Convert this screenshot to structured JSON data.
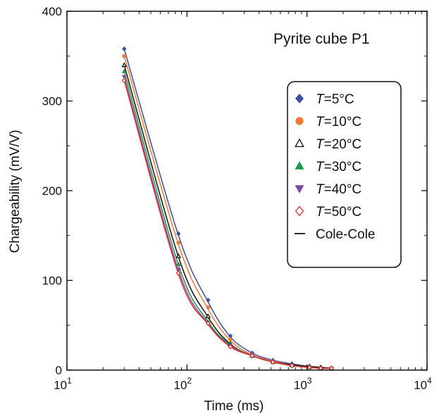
{
  "chart_data": {
    "type": "scatter",
    "title": "Pyrite cube P1",
    "xlabel": "Time (ms)",
    "ylabel": "Chargeability (mV/V)",
    "xscale": "log",
    "xlim": [
      10,
      10000
    ],
    "ylim": [
      0,
      400
    ],
    "xticks": [
      {
        "value": 10,
        "base": "10",
        "exp": "1"
      },
      {
        "value": 100,
        "base": "10",
        "exp": "2"
      },
      {
        "value": 1000,
        "base": "10",
        "exp": "3"
      },
      {
        "value": 10000,
        "base": "10",
        "exp": "4"
      }
    ],
    "yticks": [
      0,
      100,
      200,
      300,
      400
    ],
    "grid": false,
    "legend_position": "right",
    "legend_prefix": "T",
    "x": [
      30,
      85,
      150,
      230,
      350,
      520,
      750,
      1050,
      1300,
      1600
    ],
    "series": [
      {
        "name": "=5°C",
        "marker": "diamond",
        "color": "#3b4fa3",
        "filled": true,
        "values": [
          358,
          152,
          78,
          38,
          19,
          11,
          7,
          4,
          3,
          2
        ]
      },
      {
        "name": "=10°C",
        "marker": "circle",
        "color": "#f07a30",
        "filled": true,
        "values": [
          350,
          142,
          70,
          34,
          17,
          10,
          6,
          4,
          3,
          2
        ]
      },
      {
        "name": "=20°C",
        "marker": "triangle-up",
        "color": "#111111",
        "filled": false,
        "values": [
          340,
          127,
          60,
          29,
          16,
          9,
          6,
          4,
          3,
          2
        ]
      },
      {
        "name": "=30°C",
        "marker": "triangle-up",
        "color": "#1a9a48",
        "filled": true,
        "values": [
          333,
          118,
          54,
          28,
          16,
          9,
          5,
          3,
          2,
          2
        ]
      },
      {
        "name": "=40°C",
        "marker": "triangle-down",
        "color": "#7b4aa2",
        "filled": true,
        "values": [
          327,
          112,
          52,
          27,
          16,
          9,
          5,
          3,
          2,
          2
        ]
      },
      {
        "name": "=50°C",
        "marker": "diamond",
        "color": "#e03030",
        "filled": false,
        "values": [
          323,
          108,
          52,
          26,
          16,
          9,
          5,
          3,
          2,
          2
        ]
      }
    ],
    "fits": [
      {
        "name": "Cole-Cole",
        "color": "#3b4fa3",
        "values": [
          358,
          150,
          76,
          37,
          19,
          11,
          7,
          4,
          3,
          2
        ]
      },
      {
        "name": "Cole-Cole",
        "color": "#f07a30",
        "values": [
          350,
          140,
          68,
          33,
          17,
          10,
          6,
          4,
          3,
          2
        ]
      },
      {
        "name": "Cole-Cole",
        "color": "#111111",
        "values": [
          340,
          126,
          59,
          29,
          16,
          9,
          6,
          4,
          3,
          2
        ]
      },
      {
        "name": "Cole-Cole",
        "color": "#1a9a48",
        "values": [
          333,
          117,
          54,
          28,
          16,
          9,
          5,
          3,
          2,
          2
        ]
      },
      {
        "name": "Cole-Cole",
        "color": "#7b4aa2",
        "values": [
          327,
          111,
          52,
          27,
          16,
          9,
          5,
          3,
          2,
          2
        ]
      },
      {
        "name": "Cole-Cole",
        "color": "#e03030",
        "values": [
          323,
          107,
          51,
          26,
          16,
          9,
          5,
          3,
          2,
          2
        ]
      }
    ],
    "fit_legend": {
      "name": "Cole-Cole",
      "color": "#111111"
    }
  }
}
